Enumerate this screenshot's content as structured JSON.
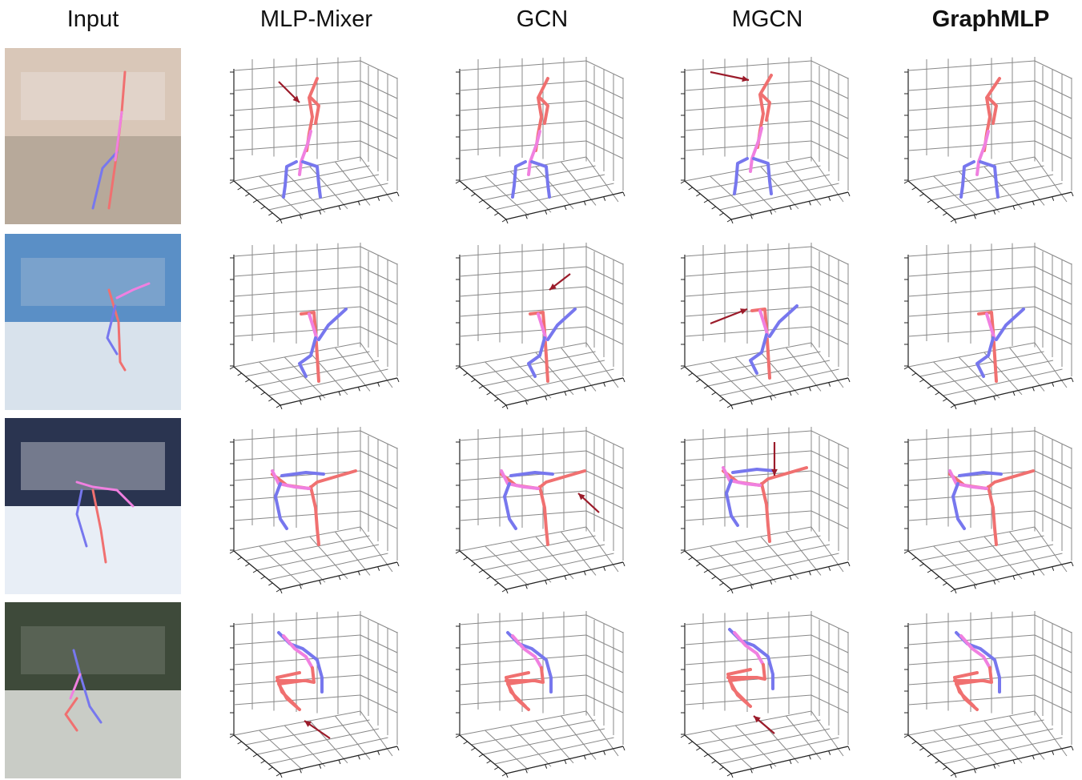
{
  "headers": {
    "input": "Input",
    "mlp_mixer": "MLP-Mixer",
    "gcn": "GCN",
    "mgcn": "MGCN",
    "graphmlp": "GraphMLP"
  },
  "colors": {
    "right_limb": "#f07070",
    "left_limb": "#7777ee",
    "torso": "#f080e0",
    "arrow": "#9b1b2a",
    "grid": "#888888"
  },
  "rows": [
    {
      "photo": "indoor-handstand-dancer"
    },
    {
      "photo": "figure-skater-spin"
    },
    {
      "photo": "figure-skater-spiral"
    },
    {
      "photo": "outdoor-crouching-dancer"
    }
  ],
  "methods": [
    "MLP-Mixer",
    "GCN",
    "MGCN",
    "GraphMLP"
  ],
  "highlight_method": "GraphMLP"
}
